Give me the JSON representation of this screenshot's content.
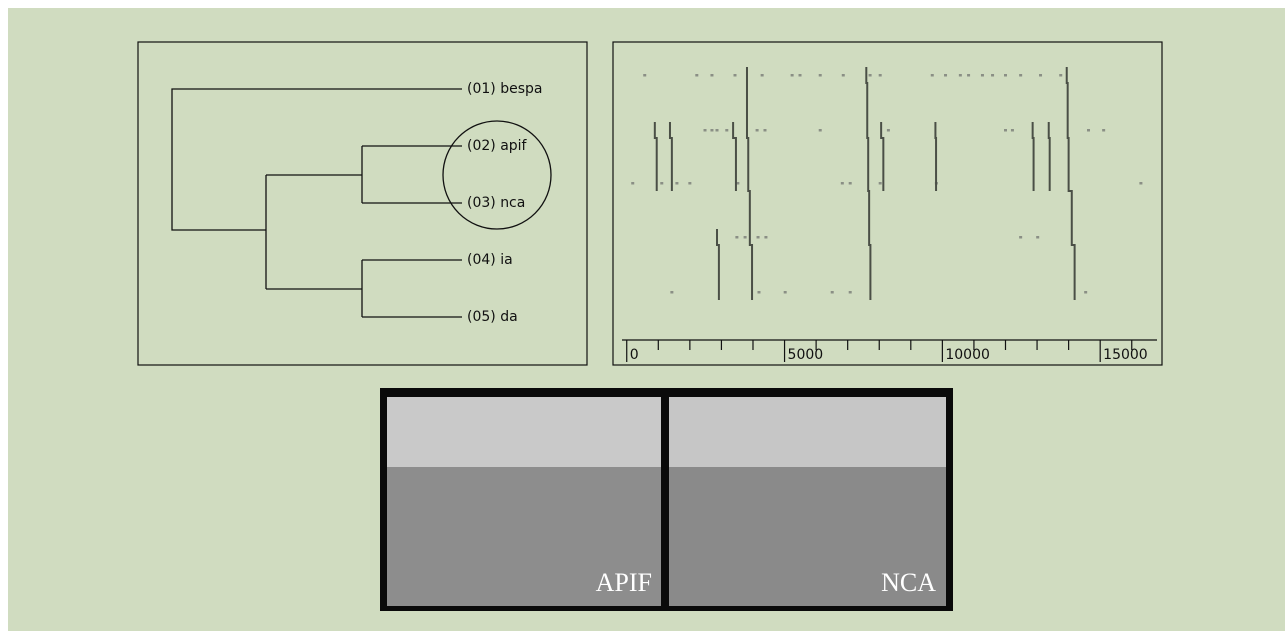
{
  "dendrogram": {
    "leaves": [
      "(01) bespa",
      "(02) apif",
      "(03) nca",
      "(04) ia",
      "(05) da"
    ]
  },
  "raster": {
    "xlim": [
      -150,
      16800
    ],
    "xticks": [
      0,
      5000,
      10000,
      15000
    ],
    "xminor_ticks": [
      1000,
      2000,
      3000,
      4000,
      6000,
      7000,
      8000,
      9000,
      11000,
      12000,
      13000,
      14000,
      16000
    ],
    "rows": [
      [
        570,
        2220,
        2700,
        3430,
        4290,
        5240,
        5490,
        6130,
        6860,
        7710,
        8030,
        9680,
        10100,
        10570,
        10830,
        11270,
        11590,
        12000,
        12480,
        13110,
        13750
      ],
      [
        2480,
        2700,
        2860,
        3170,
        4130,
        4380,
        6130,
        8290,
        12000,
        12220,
        14630,
        15110
      ],
      [
        190,
        1110,
        1590,
        2000,
        3520,
        6830,
        7080,
        8030,
        9810,
        16290
      ],
      [
        3490,
        3750,
        4160,
        4410,
        12480,
        13020
      ],
      [
        1430,
        4190,
        5020,
        6510,
        7080,
        14540
      ]
    ],
    "patterns": [
      [
        null,
        890,
        950,
        null,
        null
      ],
      [
        null,
        1370,
        1430,
        null,
        null
      ],
      [
        null,
        null,
        null,
        2860,
        2920
      ],
      [
        null,
        3370,
        3460,
        null,
        null
      ],
      [
        3810,
        3810,
        3850,
        3900,
        3970
      ],
      [
        7590,
        7620,
        7650,
        7680,
        7720
      ],
      [
        null,
        8060,
        8130,
        null,
        null
      ],
      [
        null,
        9780,
        9800,
        null,
        null
      ],
      [
        null,
        12860,
        12890,
        null,
        null
      ],
      [
        null,
        13370,
        13400,
        null,
        null
      ],
      [
        13940,
        13970,
        14000,
        14100,
        14190
      ]
    ]
  },
  "photos": [
    "APIF",
    "NCA"
  ]
}
